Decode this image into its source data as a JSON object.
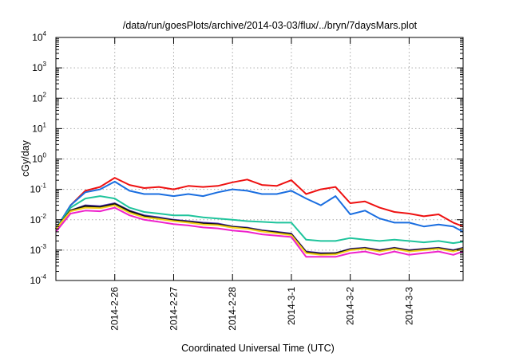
{
  "chart_data": {
    "type": "line",
    "title": "/data/run/goesPlots/archive/2014-03-03/flux/../bryn/7daysMars.plot",
    "xlabel": "Coordinated Universal Time (UTC)",
    "ylabel": "cGy/day",
    "x_tick_labels": [
      "2014-2-26",
      "2014-2-27",
      "2014-2-28",
      "2014-3-1",
      "2014-3-2",
      "2014-3-3"
    ],
    "y_scale": "log",
    "y_tick_labels": [
      {
        "base": "10",
        "exp": "-4"
      },
      {
        "base": "10",
        "exp": "-3"
      },
      {
        "base": "10",
        "exp": "-2"
      },
      {
        "base": "10",
        "exp": "-1"
      },
      {
        "base": "10",
        "exp": "0"
      },
      {
        "base": "10",
        "exp": "1"
      },
      {
        "base": "10",
        "exp": "2"
      },
      {
        "base": "10",
        "exp": "3"
      },
      {
        "base": "10",
        "exp": "4"
      }
    ],
    "xlim": [
      "2014-02-25 00:00",
      "2014-03-03 22:00"
    ],
    "ylim": [
      0.0001,
      10000
    ],
    "grid": true,
    "legend": "none",
    "x": [
      "2014-02-25 00:00",
      "2014-02-25 06:00",
      "2014-02-25 12:00",
      "2014-02-25 18:00",
      "2014-02-26 00:00",
      "2014-02-26 06:00",
      "2014-02-26 12:00",
      "2014-02-26 18:00",
      "2014-02-27 00:00",
      "2014-02-27 06:00",
      "2014-02-27 12:00",
      "2014-02-27 18:00",
      "2014-02-28 00:00",
      "2014-02-28 06:00",
      "2014-02-28 12:00",
      "2014-02-28 18:00",
      "2014-03-01 00:00",
      "2014-03-01 06:00",
      "2014-03-01 12:00",
      "2014-03-01 18:00",
      "2014-03-02 00:00",
      "2014-03-02 06:00",
      "2014-03-02 12:00",
      "2014-03-02 18:00",
      "2014-03-03 00:00",
      "2014-03-03 06:00",
      "2014-03-03 12:00",
      "2014-03-03 18:00",
      "2014-03-03 22:00"
    ],
    "series": [
      {
        "color": "#ee1111",
        "values": [
          0.005,
          0.03,
          0.09,
          0.12,
          0.24,
          0.14,
          0.11,
          0.12,
          0.1,
          0.13,
          0.12,
          0.13,
          0.17,
          0.21,
          0.14,
          0.13,
          0.2,
          0.07,
          0.1,
          0.12,
          0.035,
          0.04,
          0.025,
          0.018,
          0.016,
          0.013,
          0.015,
          0.008,
          0.006
        ]
      },
      {
        "color": "#1a6ee0",
        "values": [
          0.005,
          0.03,
          0.08,
          0.1,
          0.18,
          0.09,
          0.07,
          0.07,
          0.06,
          0.07,
          0.06,
          0.08,
          0.1,
          0.09,
          0.07,
          0.07,
          0.09,
          0.05,
          0.03,
          0.06,
          0.015,
          0.02,
          0.011,
          0.008,
          0.008,
          0.006,
          0.007,
          0.006,
          0.004
        ]
      },
      {
        "color": "#1fc49c",
        "values": [
          0.005,
          0.025,
          0.05,
          0.06,
          0.05,
          0.025,
          0.018,
          0.016,
          0.014,
          0.014,
          0.012,
          0.011,
          0.01,
          0.009,
          0.0085,
          0.008,
          0.008,
          0.0022,
          0.002,
          0.002,
          0.0025,
          0.0022,
          0.002,
          0.0022,
          0.002,
          0.0018,
          0.002,
          0.0017,
          0.0019
        ]
      },
      {
        "color": "#5533bb",
        "values": [
          0.005,
          0.02,
          0.03,
          0.028,
          0.035,
          0.02,
          0.014,
          0.012,
          0.01,
          0.009,
          0.008,
          0.0075,
          0.006,
          0.0055,
          0.0045,
          0.004,
          0.0035,
          0.0009,
          0.0008,
          0.0008,
          0.0011,
          0.0012,
          0.001,
          0.0012,
          0.001,
          0.0011,
          0.0012,
          0.001,
          0.0012
        ]
      },
      {
        "color": "#111111",
        "values": [
          0.005,
          0.02,
          0.028,
          0.026,
          0.033,
          0.019,
          0.013,
          0.011,
          0.0095,
          0.0085,
          0.0075,
          0.007,
          0.0058,
          0.0052,
          0.0043,
          0.0038,
          0.0033,
          0.00085,
          0.00075,
          0.00078,
          0.00105,
          0.00115,
          0.00095,
          0.00115,
          0.00095,
          0.00105,
          0.00115,
          0.00095,
          0.00115
        ]
      },
      {
        "color": "#f5d31a",
        "values": [
          0.005,
          0.019,
          0.025,
          0.024,
          0.03,
          0.017,
          0.012,
          0.0105,
          0.009,
          0.008,
          0.007,
          0.0066,
          0.0055,
          0.005,
          0.0041,
          0.0036,
          0.0031,
          0.0008,
          0.0007,
          0.00072,
          0.001,
          0.0011,
          0.0009,
          0.0011,
          0.0009,
          0.001,
          0.0011,
          0.0009,
          0.0011
        ]
      },
      {
        "color": "#ee22cc",
        "values": [
          0.004,
          0.016,
          0.02,
          0.019,
          0.025,
          0.014,
          0.01,
          0.0085,
          0.0072,
          0.0065,
          0.0056,
          0.0052,
          0.0044,
          0.004,
          0.0033,
          0.003,
          0.0027,
          0.0006,
          0.0006,
          0.0006,
          0.0008,
          0.0009,
          0.0007,
          0.0009,
          0.0007,
          0.0008,
          0.0009,
          0.0007,
          0.0009
        ]
      }
    ]
  }
}
